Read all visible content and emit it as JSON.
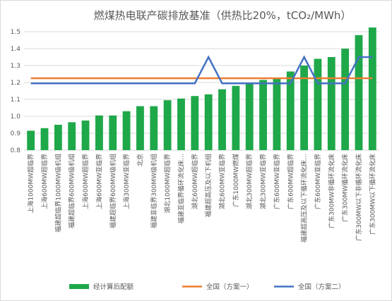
{
  "chart_data": {
    "type": "bar",
    "title": "燃煤热电联产碳排放基准（供热比20%，tCO₂/MWh）",
    "categories": [
      "上海1000MW超临界",
      "上海600MW超临界",
      "福建超临界1000MW级机组",
      "福建超临界600MW级机组",
      "上海600MW超临界",
      "上海600MW亚临界",
      "福建超临界600MW级机组",
      "上海300MW亚临界",
      "北京",
      "福建亚临界300MW级机组",
      "湖北1000MW超临界",
      "福建亚临界循环流化床…",
      "湖北600MW超临界",
      "福建超高压及以下机组",
      "湖北600MW亚临界",
      "广东1000MW燃煤",
      "湖北300MW超临界",
      "湖北300MW亚临界",
      "广东600MW亚临界",
      "广东600MW超临界",
      "福建超高压及以下循环流化床…",
      "广东600MW亚临界",
      "广东300MW非循环流化床",
      "广东300MW循环流化床",
      "广东300MW以下非循环流化床",
      "广东300MW以下循环流化床"
    ],
    "series": [
      {
        "name": "经计算后配额",
        "kind": "bar",
        "color": "#1fa84a",
        "values": [
          0.915,
          0.93,
          0.95,
          0.965,
          0.975,
          1.005,
          1.005,
          1.03,
          1.06,
          1.06,
          1.095,
          1.105,
          1.12,
          1.13,
          1.16,
          1.18,
          1.195,
          1.215,
          1.225,
          1.265,
          1.3,
          1.34,
          1.35,
          1.4,
          1.48,
          1.525
        ]
      },
      {
        "name": "全国（方案一）",
        "kind": "line",
        "color": "#ed7d31",
        "values": [
          1.225,
          1.225,
          1.225,
          1.225,
          1.225,
          1.225,
          1.225,
          1.225,
          1.225,
          1.225,
          1.225,
          1.225,
          1.225,
          1.225,
          1.225,
          1.225,
          1.225,
          1.225,
          1.225,
          1.225,
          1.225,
          1.225,
          1.225,
          1.225,
          1.225,
          1.225
        ]
      },
      {
        "name": "全国（方案二）",
        "kind": "line",
        "color": "#4472c4",
        "values": [
          1.195,
          1.195,
          1.195,
          1.195,
          1.195,
          1.195,
          1.195,
          1.195,
          1.195,
          1.195,
          1.195,
          1.195,
          1.195,
          1.35,
          1.195,
          1.195,
          1.195,
          1.195,
          1.195,
          1.195,
          1.35,
          1.195,
          1.195,
          1.195,
          1.35,
          1.35
        ]
      }
    ],
    "ylim": [
      0.8,
      1.5
    ],
    "yticks": [
      "0.8",
      "0.9",
      "1.0",
      "1.1",
      "1.2",
      "1.3",
      "1.4",
      "1.5"
    ],
    "grid": true,
    "legend_position": "bottom"
  }
}
